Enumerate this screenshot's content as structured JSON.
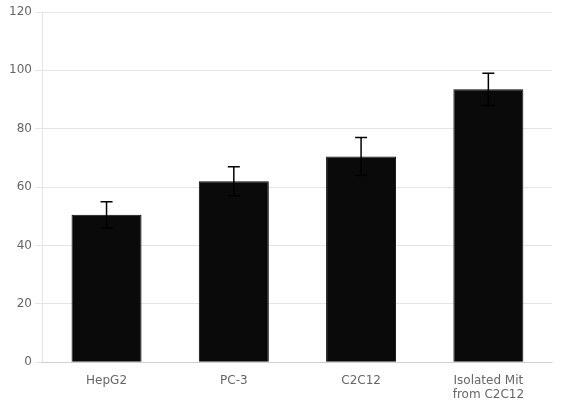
{
  "chart_data": {
    "type": "bar",
    "categories": [
      "HepG2",
      "PC-3",
      "C2C12",
      "Isolated Mit\nfrom C2C12"
    ],
    "values": [
      50.5,
      62.0,
      70.5,
      93.5
    ],
    "errors": [
      4.5,
      5.0,
      6.5,
      5.5
    ],
    "color": "#0a0a0a",
    "ylim": [
      0,
      120
    ],
    "yticks": [
      0,
      20,
      40,
      60,
      80,
      100,
      120
    ],
    "grid": true
  }
}
